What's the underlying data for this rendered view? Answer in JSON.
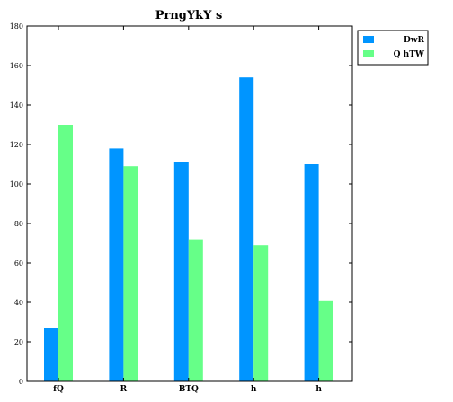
{
  "chart_data": {
    "type": "bar",
    "title": "PrngYkY s",
    "xlabel": "",
    "ylabel": "",
    "categories": [
      "fQ",
      "R",
      "BTQ",
      "h",
      "h"
    ],
    "series": [
      {
        "name": "DwR",
        "values": [
          27,
          118,
          111,
          154,
          110
        ],
        "color": "#0095ff"
      },
      {
        "name": "Q hTW",
        "values": [
          130,
          109,
          72,
          69,
          41
        ],
        "color": "#66ff88"
      }
    ],
    "ylim": [
      0,
      180
    ],
    "yticks": [
      0,
      20,
      40,
      60,
      80,
      100,
      120,
      140,
      160,
      180
    ],
    "grid": false,
    "legend_position": "outside-top-right"
  }
}
